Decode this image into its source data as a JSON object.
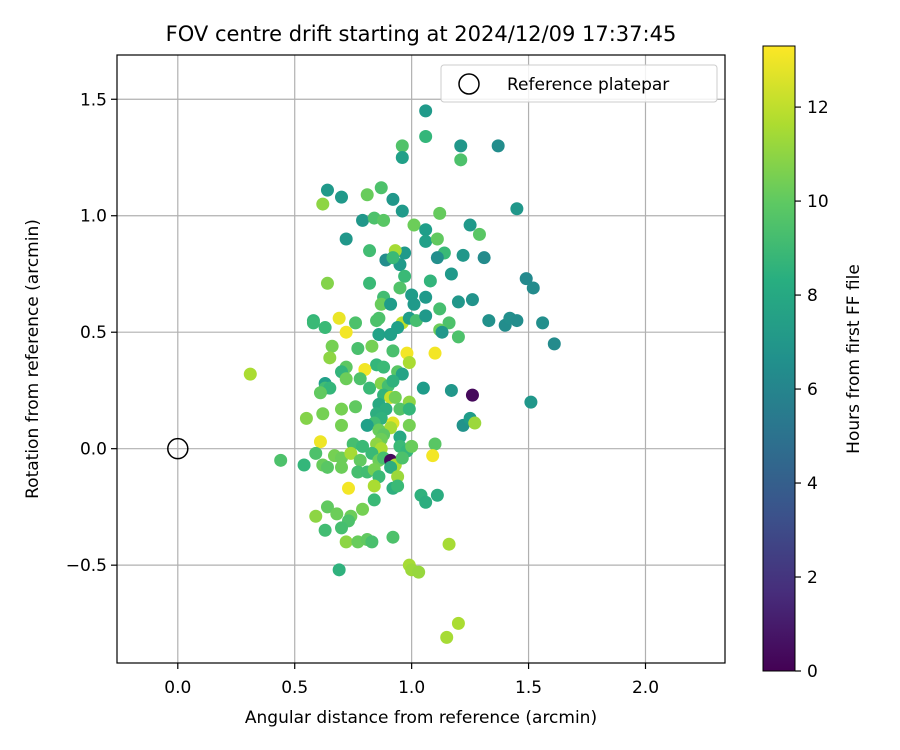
{
  "chart_data": {
    "type": "scatter",
    "title": "FOV centre drift starting at 2024/12/09 17:37:45",
    "xlabel": "Angular distance from reference (arcmin)",
    "ylabel": "Rotation from reference (arcmin)",
    "xlim": [
      -0.26,
      2.34
    ],
    "ylim": [
      -0.92,
      1.69
    ],
    "xticks": [
      0.0,
      0.5,
      1.0,
      1.5,
      2.0
    ],
    "xtick_labels": [
      "0.0",
      "0.5",
      "1.0",
      "1.5",
      "2.0"
    ],
    "yticks": [
      -0.5,
      0.0,
      0.5,
      1.0,
      1.5
    ],
    "ytick_labels": [
      "−0.5",
      "0.0",
      "0.5",
      "1.0",
      "1.5"
    ],
    "grid": true,
    "legend": {
      "position": "upper right",
      "label": "Reference platepar",
      "marker": "open-circle"
    },
    "reference_point": {
      "x": 0.0,
      "y": 0.0
    },
    "colorbar": {
      "label": "Hours from first FF file",
      "colormap": "viridis",
      "range": [
        0,
        13.3
      ],
      "ticks": [
        0,
        2,
        4,
        6,
        8,
        10,
        12
      ],
      "tick_labels": [
        "0",
        "2",
        "4",
        "6",
        "8",
        "10",
        "12"
      ]
    },
    "points": [
      {
        "x": 1.06,
        "y": 1.45,
        "h": 7.2
      },
      {
        "x": 1.37,
        "y": 1.3,
        "h": 6.5
      },
      {
        "x": 1.21,
        "y": 1.3,
        "h": 7.0
      },
      {
        "x": 1.06,
        "y": 1.34,
        "h": 8.8
      },
      {
        "x": 0.96,
        "y": 1.3,
        "h": 9.6
      },
      {
        "x": 0.96,
        "y": 1.25,
        "h": 7.5
      },
      {
        "x": 1.21,
        "y": 1.24,
        "h": 9.5
      },
      {
        "x": 0.64,
        "y": 1.11,
        "h": 7.1
      },
      {
        "x": 0.7,
        "y": 1.08,
        "h": 7.1
      },
      {
        "x": 0.62,
        "y": 1.05,
        "h": 11.0
      },
      {
        "x": 0.81,
        "y": 1.09,
        "h": 10.2
      },
      {
        "x": 0.87,
        "y": 1.12,
        "h": 9.5
      },
      {
        "x": 0.92,
        "y": 1.07,
        "h": 7.0
      },
      {
        "x": 1.45,
        "y": 1.03,
        "h": 7.0
      },
      {
        "x": 0.96,
        "y": 1.02,
        "h": 7.2
      },
      {
        "x": 1.12,
        "y": 1.01,
        "h": 10.1
      },
      {
        "x": 0.79,
        "y": 0.98,
        "h": 7.0
      },
      {
        "x": 0.84,
        "y": 0.99,
        "h": 9.5
      },
      {
        "x": 0.88,
        "y": 0.98,
        "h": 9.8
      },
      {
        "x": 1.25,
        "y": 0.96,
        "h": 7.1
      },
      {
        "x": 1.01,
        "y": 0.96,
        "h": 10.3
      },
      {
        "x": 1.06,
        "y": 0.94,
        "h": 7.4
      },
      {
        "x": 1.06,
        "y": 0.89,
        "h": 7.5
      },
      {
        "x": 1.11,
        "y": 0.9,
        "h": 10.0
      },
      {
        "x": 1.29,
        "y": 0.92,
        "h": 9.8
      },
      {
        "x": 0.72,
        "y": 0.9,
        "h": 7.0
      },
      {
        "x": 0.97,
        "y": 0.84,
        "h": 7.2
      },
      {
        "x": 0.93,
        "y": 0.85,
        "h": 11.5
      },
      {
        "x": 0.82,
        "y": 0.85,
        "h": 9.2
      },
      {
        "x": 1.22,
        "y": 0.83,
        "h": 7.0
      },
      {
        "x": 1.31,
        "y": 0.82,
        "h": 6.4
      },
      {
        "x": 1.14,
        "y": 0.84,
        "h": 9.0
      },
      {
        "x": 1.11,
        "y": 0.82,
        "h": 6.6
      },
      {
        "x": 0.89,
        "y": 0.81,
        "h": 6.5
      },
      {
        "x": 0.95,
        "y": 0.79,
        "h": 7.2
      },
      {
        "x": 0.92,
        "y": 0.82,
        "h": 9.0
      },
      {
        "x": 1.17,
        "y": 0.75,
        "h": 7.1
      },
      {
        "x": 1.49,
        "y": 0.73,
        "h": 6.3
      },
      {
        "x": 1.52,
        "y": 0.69,
        "h": 6.4
      },
      {
        "x": 0.64,
        "y": 0.71,
        "h": 10.8
      },
      {
        "x": 0.82,
        "y": 0.71,
        "h": 9.0
      },
      {
        "x": 0.97,
        "y": 0.74,
        "h": 9.0
      },
      {
        "x": 1.08,
        "y": 0.72,
        "h": 8.7
      },
      {
        "x": 0.95,
        "y": 0.69,
        "h": 9.6
      },
      {
        "x": 1.0,
        "y": 0.66,
        "h": 7.3
      },
      {
        "x": 1.06,
        "y": 0.65,
        "h": 7.2
      },
      {
        "x": 1.26,
        "y": 0.64,
        "h": 6.8
      },
      {
        "x": 1.2,
        "y": 0.63,
        "h": 7.0
      },
      {
        "x": 0.88,
        "y": 0.65,
        "h": 9.2
      },
      {
        "x": 0.87,
        "y": 0.62,
        "h": 10.2
      },
      {
        "x": 0.91,
        "y": 0.62,
        "h": 7.3
      },
      {
        "x": 1.01,
        "y": 0.62,
        "h": 7.2
      },
      {
        "x": 1.12,
        "y": 0.6,
        "h": 9.3
      },
      {
        "x": 0.86,
        "y": 0.56,
        "h": 9.5
      },
      {
        "x": 0.58,
        "y": 0.55,
        "h": 8.8
      },
      {
        "x": 0.58,
        "y": 0.54,
        "h": 9.0
      },
      {
        "x": 0.63,
        "y": 0.52,
        "h": 9.0
      },
      {
        "x": 0.69,
        "y": 0.56,
        "h": 12.9
      },
      {
        "x": 0.76,
        "y": 0.54,
        "h": 9.5
      },
      {
        "x": 0.85,
        "y": 0.55,
        "h": 9.5
      },
      {
        "x": 0.96,
        "y": 0.54,
        "h": 12.0
      },
      {
        "x": 0.94,
        "y": 0.52,
        "h": 7.5
      },
      {
        "x": 0.99,
        "y": 0.56,
        "h": 7.4
      },
      {
        "x": 1.02,
        "y": 0.55,
        "h": 9.3
      },
      {
        "x": 1.06,
        "y": 0.57,
        "h": 7.1
      },
      {
        "x": 1.16,
        "y": 0.54,
        "h": 9.5
      },
      {
        "x": 1.12,
        "y": 0.51,
        "h": 10.3
      },
      {
        "x": 1.13,
        "y": 0.5,
        "h": 7.0
      },
      {
        "x": 1.2,
        "y": 0.48,
        "h": 9.5
      },
      {
        "x": 1.33,
        "y": 0.55,
        "h": 6.7
      },
      {
        "x": 1.4,
        "y": 0.53,
        "h": 6.5
      },
      {
        "x": 1.42,
        "y": 0.56,
        "h": 6.6
      },
      {
        "x": 1.45,
        "y": 0.55,
        "h": 6.5
      },
      {
        "x": 1.56,
        "y": 0.54,
        "h": 6.6
      },
      {
        "x": 1.61,
        "y": 0.45,
        "h": 6.4
      },
      {
        "x": 0.72,
        "y": 0.5,
        "h": 13.1
      },
      {
        "x": 0.86,
        "y": 0.49,
        "h": 7.6
      },
      {
        "x": 0.91,
        "y": 0.49,
        "h": 7.5
      },
      {
        "x": 0.83,
        "y": 0.44,
        "h": 10.5
      },
      {
        "x": 0.66,
        "y": 0.44,
        "h": 10.5
      },
      {
        "x": 0.77,
        "y": 0.43,
        "h": 9.4
      },
      {
        "x": 0.92,
        "y": 0.42,
        "h": 9.4
      },
      {
        "x": 0.98,
        "y": 0.41,
        "h": 13.1
      },
      {
        "x": 0.99,
        "y": 0.37,
        "h": 11.6
      },
      {
        "x": 1.1,
        "y": 0.41,
        "h": 13.1
      },
      {
        "x": 0.65,
        "y": 0.39,
        "h": 11.0
      },
      {
        "x": 0.85,
        "y": 0.36,
        "h": 8.8
      },
      {
        "x": 0.72,
        "y": 0.35,
        "h": 9.9
      },
      {
        "x": 0.7,
        "y": 0.33,
        "h": 8.7
      },
      {
        "x": 0.8,
        "y": 0.34,
        "h": 13.1
      },
      {
        "x": 0.88,
        "y": 0.35,
        "h": 9.0
      },
      {
        "x": 0.94,
        "y": 0.33,
        "h": 9.8
      },
      {
        "x": 0.96,
        "y": 0.32,
        "h": 7.7
      },
      {
        "x": 0.31,
        "y": 0.32,
        "h": 11.6
      },
      {
        "x": 0.72,
        "y": 0.3,
        "h": 10.3
      },
      {
        "x": 0.63,
        "y": 0.28,
        "h": 7.5
      },
      {
        "x": 0.63,
        "y": 0.26,
        "h": 9.2
      },
      {
        "x": 0.65,
        "y": 0.26,
        "h": 8.8
      },
      {
        "x": 0.61,
        "y": 0.24,
        "h": 10.0
      },
      {
        "x": 0.82,
        "y": 0.26,
        "h": 9.0
      },
      {
        "x": 0.78,
        "y": 0.3,
        "h": 9.5
      },
      {
        "x": 0.87,
        "y": 0.28,
        "h": 10.8
      },
      {
        "x": 0.9,
        "y": 0.27,
        "h": 9.3
      },
      {
        "x": 0.92,
        "y": 0.29,
        "h": 8.5
      },
      {
        "x": 1.05,
        "y": 0.26,
        "h": 7.3
      },
      {
        "x": 1.17,
        "y": 0.25,
        "h": 7.0
      },
      {
        "x": 1.26,
        "y": 0.23,
        "h": 0.3
      },
      {
        "x": 1.51,
        "y": 0.2,
        "h": 7.0
      },
      {
        "x": 0.88,
        "y": 0.23,
        "h": 8.7
      },
      {
        "x": 0.91,
        "y": 0.22,
        "h": 12.2
      },
      {
        "x": 0.93,
        "y": 0.22,
        "h": 10.4
      },
      {
        "x": 0.99,
        "y": 0.2,
        "h": 11.0
      },
      {
        "x": 0.86,
        "y": 0.19,
        "h": 8.0
      },
      {
        "x": 0.89,
        "y": 0.17,
        "h": 8.3
      },
      {
        "x": 0.95,
        "y": 0.17,
        "h": 9.7
      },
      {
        "x": 0.99,
        "y": 0.17,
        "h": 8.8
      },
      {
        "x": 0.7,
        "y": 0.17,
        "h": 10.5
      },
      {
        "x": 0.76,
        "y": 0.18,
        "h": 10.0
      },
      {
        "x": 0.62,
        "y": 0.15,
        "h": 10.5
      },
      {
        "x": 0.55,
        "y": 0.13,
        "h": 10.8
      },
      {
        "x": 0.85,
        "y": 0.15,
        "h": 8.3
      },
      {
        "x": 0.87,
        "y": 0.13,
        "h": 8.5
      },
      {
        "x": 0.84,
        "y": 0.11,
        "h": 9.2
      },
      {
        "x": 0.81,
        "y": 0.1,
        "h": 7.5
      },
      {
        "x": 0.92,
        "y": 0.11,
        "h": 12.7
      },
      {
        "x": 0.91,
        "y": 0.09,
        "h": 11.5
      },
      {
        "x": 0.99,
        "y": 0.1,
        "h": 10.5
      },
      {
        "x": 0.7,
        "y": 0.1,
        "h": 10.5
      },
      {
        "x": 0.86,
        "y": 0.08,
        "h": 10.2
      },
      {
        "x": 0.88,
        "y": 0.06,
        "h": 9.9
      },
      {
        "x": 0.95,
        "y": 0.05,
        "h": 8.0
      },
      {
        "x": 0.87,
        "y": 0.04,
        "h": 10.3
      },
      {
        "x": 1.22,
        "y": 0.1,
        "h": 6.8
      },
      {
        "x": 1.25,
        "y": 0.13,
        "h": 7.3
      },
      {
        "x": 1.27,
        "y": 0.11,
        "h": 11.3
      },
      {
        "x": 0.61,
        "y": 0.03,
        "h": 13.0
      },
      {
        "x": 0.75,
        "y": 0.02,
        "h": 9.3
      },
      {
        "x": 0.79,
        "y": 0.01,
        "h": 9.0
      },
      {
        "x": 0.85,
        "y": 0.02,
        "h": 11.0
      },
      {
        "x": 0.87,
        "y": 0.0,
        "h": 11.6
      },
      {
        "x": 0.95,
        "y": 0.01,
        "h": 9.0
      },
      {
        "x": 0.98,
        "y": -0.01,
        "h": 8.8
      },
      {
        "x": 1.0,
        "y": 0.01,
        "h": 10.2
      },
      {
        "x": 1.1,
        "y": 0.02,
        "h": 9.8
      },
      {
        "x": 0.59,
        "y": -0.02,
        "h": 9.5
      },
      {
        "x": 0.62,
        "y": -0.07,
        "h": 10.2
      },
      {
        "x": 0.54,
        "y": -0.07,
        "h": 8.8
      },
      {
        "x": 0.44,
        "y": -0.05,
        "h": 9.5
      },
      {
        "x": 0.64,
        "y": -0.08,
        "h": 9.8
      },
      {
        "x": 0.67,
        "y": -0.03,
        "h": 10.5
      },
      {
        "x": 0.7,
        "y": -0.04,
        "h": 10.3
      },
      {
        "x": 0.74,
        "y": -0.02,
        "h": 11.5
      },
      {
        "x": 0.78,
        "y": -0.05,
        "h": 10.0
      },
      {
        "x": 0.83,
        "y": -0.02,
        "h": 9.0
      },
      {
        "x": 0.86,
        "y": -0.05,
        "h": 10.3
      },
      {
        "x": 0.88,
        "y": -0.04,
        "h": 9.3
      },
      {
        "x": 0.91,
        "y": -0.05,
        "h": 0.3
      },
      {
        "x": 0.93,
        "y": -0.07,
        "h": 11.6
      },
      {
        "x": 0.96,
        "y": -0.04,
        "h": 9.5
      },
      {
        "x": 1.09,
        "y": -0.03,
        "h": 13.1
      },
      {
        "x": 0.7,
        "y": -0.08,
        "h": 10.3
      },
      {
        "x": 0.77,
        "y": -0.1,
        "h": 9.3
      },
      {
        "x": 0.81,
        "y": -0.1,
        "h": 9.2
      },
      {
        "x": 0.84,
        "y": -0.09,
        "h": 10.5
      },
      {
        "x": 0.86,
        "y": -0.12,
        "h": 9.0
      },
      {
        "x": 0.91,
        "y": -0.08,
        "h": 8.3
      },
      {
        "x": 0.94,
        "y": -0.12,
        "h": 11.3
      },
      {
        "x": 0.73,
        "y": -0.17,
        "h": 13.1
      },
      {
        "x": 0.84,
        "y": -0.16,
        "h": 11.6
      },
      {
        "x": 0.92,
        "y": -0.17,
        "h": 8.4
      },
      {
        "x": 0.94,
        "y": -0.16,
        "h": 9.0
      },
      {
        "x": 1.04,
        "y": -0.2,
        "h": 8.5
      },
      {
        "x": 1.06,
        "y": -0.23,
        "h": 8.3
      },
      {
        "x": 1.11,
        "y": -0.2,
        "h": 8.2
      },
      {
        "x": 0.84,
        "y": -0.22,
        "h": 9.0
      },
      {
        "x": 0.64,
        "y": -0.25,
        "h": 10.0
      },
      {
        "x": 0.68,
        "y": -0.28,
        "h": 10.3
      },
      {
        "x": 0.59,
        "y": -0.29,
        "h": 11.0
      },
      {
        "x": 0.74,
        "y": -0.29,
        "h": 10.3
      },
      {
        "x": 0.73,
        "y": -0.31,
        "h": 9.5
      },
      {
        "x": 0.79,
        "y": -0.26,
        "h": 10.5
      },
      {
        "x": 0.63,
        "y": -0.35,
        "h": 9.2
      },
      {
        "x": 0.7,
        "y": -0.34,
        "h": 9.3
      },
      {
        "x": 0.72,
        "y": -0.4,
        "h": 11.0
      },
      {
        "x": 0.77,
        "y": -0.4,
        "h": 10.2
      },
      {
        "x": 0.81,
        "y": -0.39,
        "h": 10.0
      },
      {
        "x": 0.83,
        "y": -0.4,
        "h": 9.4
      },
      {
        "x": 0.92,
        "y": -0.38,
        "h": 9.5
      },
      {
        "x": 1.16,
        "y": -0.41,
        "h": 11.5
      },
      {
        "x": 0.69,
        "y": -0.52,
        "h": 8.5
      },
      {
        "x": 0.99,
        "y": -0.5,
        "h": 11.5
      },
      {
        "x": 1.0,
        "y": -0.52,
        "h": 11.3
      },
      {
        "x": 1.03,
        "y": -0.53,
        "h": 11.2
      },
      {
        "x": 1.2,
        "y": -0.75,
        "h": 11.6
      },
      {
        "x": 1.15,
        "y": -0.81,
        "h": 11.5
      }
    ]
  }
}
